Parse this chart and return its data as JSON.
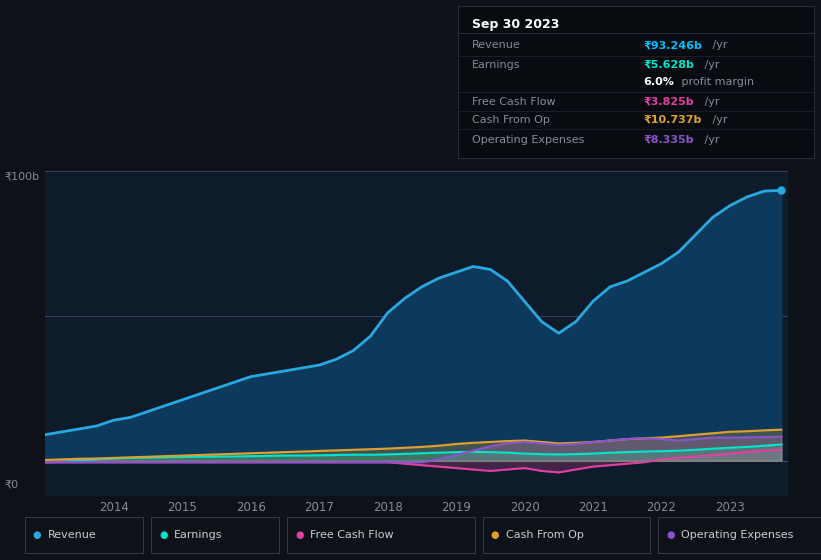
{
  "bg_color": "#0e1117",
  "plot_bg_color": "#0d1b2a",
  "tooltip_bg": "#0a0c10",
  "years_raw": [
    2013.0,
    2013.25,
    2013.5,
    2013.75,
    2014.0,
    2014.25,
    2014.5,
    2014.75,
    2015.0,
    2015.25,
    2015.5,
    2015.75,
    2016.0,
    2016.25,
    2016.5,
    2016.75,
    2017.0,
    2017.25,
    2017.5,
    2017.75,
    2018.0,
    2018.25,
    2018.5,
    2018.75,
    2019.0,
    2019.25,
    2019.5,
    2019.75,
    2020.0,
    2020.25,
    2020.5,
    2020.75,
    2021.0,
    2021.25,
    2021.5,
    2021.75,
    2022.0,
    2022.25,
    2022.5,
    2022.75,
    2023.0,
    2023.25,
    2023.5,
    2023.75
  ],
  "revenue": [
    9,
    10,
    11,
    12,
    14,
    15,
    17,
    19,
    21,
    23,
    25,
    27,
    29,
    30,
    31,
    32,
    33,
    35,
    38,
    43,
    51,
    56,
    60,
    63,
    65,
    67,
    66,
    62,
    55,
    48,
    44,
    48,
    55,
    60,
    62,
    65,
    68,
    72,
    78,
    84,
    88,
    91,
    93,
    93.246
  ],
  "earnings": [
    -0.5,
    -0.3,
    0.2,
    0.5,
    0.8,
    1.0,
    1.1,
    1.2,
    1.3,
    1.4,
    1.5,
    1.5,
    1.6,
    1.7,
    1.8,
    1.8,
    1.9,
    2.0,
    2.1,
    2.1,
    2.2,
    2.4,
    2.6,
    2.8,
    3.0,
    3.1,
    3.0,
    2.8,
    2.5,
    2.3,
    2.2,
    2.3,
    2.5,
    2.8,
    3.0,
    3.2,
    3.3,
    3.5,
    3.8,
    4.2,
    4.5,
    4.8,
    5.2,
    5.628
  ],
  "free_cash_flow": [
    -0.5,
    -0.5,
    -0.5,
    -0.5,
    -0.5,
    -0.5,
    -0.5,
    -0.5,
    -0.5,
    -0.5,
    -0.5,
    -0.5,
    -0.5,
    -0.5,
    -0.5,
    -0.5,
    -0.5,
    -0.5,
    -0.5,
    -0.5,
    -0.5,
    -1.0,
    -1.5,
    -2.0,
    -2.5,
    -3.0,
    -3.5,
    -3.0,
    -2.5,
    -3.5,
    -4.0,
    -3.0,
    -2.0,
    -1.5,
    -1.0,
    -0.5,
    0.5,
    1.0,
    1.5,
    2.0,
    2.5,
    3.0,
    3.5,
    3.825
  ],
  "cash_from_op": [
    0.3,
    0.5,
    0.7,
    0.8,
    1.0,
    1.2,
    1.4,
    1.6,
    1.8,
    2.0,
    2.2,
    2.4,
    2.6,
    2.8,
    3.0,
    3.2,
    3.4,
    3.6,
    3.8,
    4.0,
    4.2,
    4.5,
    4.8,
    5.2,
    5.8,
    6.2,
    6.5,
    6.8,
    7.0,
    6.5,
    6.0,
    6.2,
    6.5,
    7.0,
    7.5,
    7.8,
    8.0,
    8.5,
    9.0,
    9.5,
    10.0,
    10.2,
    10.5,
    10.737
  ],
  "operating_expenses": [
    -0.5,
    -0.5,
    -0.5,
    -0.5,
    -0.5,
    -0.5,
    -0.5,
    -0.5,
    -0.5,
    -0.5,
    -0.5,
    -0.5,
    -0.5,
    -0.5,
    -0.5,
    -0.5,
    -0.5,
    -0.5,
    -0.5,
    -0.5,
    -0.5,
    -0.5,
    -0.5,
    0.5,
    2.0,
    3.5,
    5.0,
    6.0,
    6.5,
    6.0,
    5.5,
    5.8,
    6.5,
    7.0,
    7.5,
    7.8,
    7.5,
    7.0,
    7.5,
    8.0,
    8.0,
    8.1,
    8.2,
    8.335
  ],
  "revenue_color": "#29a8e0",
  "earnings_color": "#00e5cc",
  "free_cash_flow_color": "#e040a0",
  "cash_from_op_color": "#e0a030",
  "operating_expenses_color": "#8855cc",
  "revenue_fill_color": "#0d3a5c",
  "x_tick_labels": [
    "2014",
    "2015",
    "2016",
    "2017",
    "2018",
    "2019",
    "2020",
    "2021",
    "2022",
    "2023"
  ],
  "x_tick_pos": [
    2014,
    2015,
    2016,
    2017,
    2018,
    2019,
    2020,
    2021,
    2022,
    2023
  ]
}
